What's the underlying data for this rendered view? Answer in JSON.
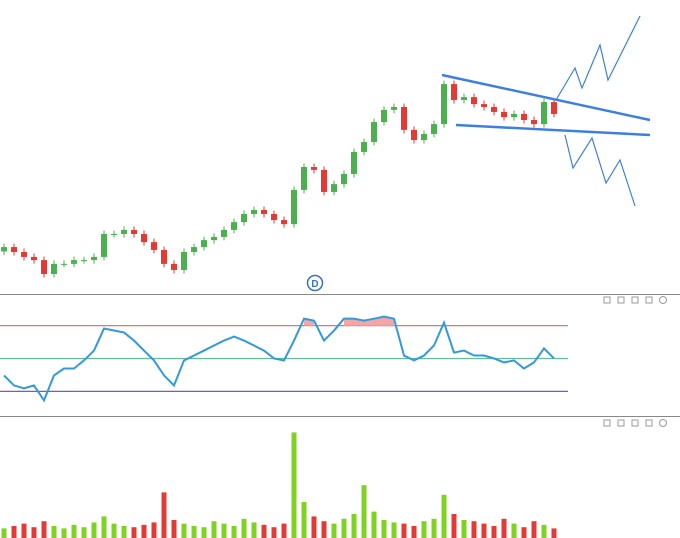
{
  "chart_data": [
    {
      "type": "candlestick",
      "annotation": "D",
      "up_color": "#4caf50",
      "down_color": "#e53935",
      "ylim": [
        0,
        100
      ],
      "open": [
        14,
        15.5,
        13.8,
        12.1,
        11,
        6.2,
        9.7,
        9.7,
        11,
        11,
        12.1,
        20,
        20,
        21.4,
        20,
        17.2,
        14.5,
        9.7,
        7.6,
        13.8,
        15.5,
        17.9,
        19,
        21.4,
        24.1,
        26.9,
        28.3,
        26.9,
        24.8,
        23.4,
        35.2,
        43.1,
        42.1,
        34.5,
        37.2,
        40.7,
        48.3,
        51.7,
        58.6,
        62.8,
        63.8,
        55.9,
        52.4,
        54.5,
        57.9,
        71.7,
        66.2,
        67.2,
        64.8,
        63.8,
        62.1,
        60.3,
        61.4,
        59.3,
        57.9,
        65.5
      ],
      "high": [
        16.7,
        16.7,
        15.0,
        13.3,
        12.2,
        10.9,
        10.9,
        12.2,
        12.2,
        13.3,
        21.2,
        21.2,
        22.6,
        22.6,
        21.2,
        18.4,
        15.7,
        10.9,
        15.0,
        16.7,
        19.1,
        20.2,
        22.6,
        25.3,
        28.1,
        29.5,
        29.5,
        28.1,
        26.0,
        36.4,
        44.3,
        44.3,
        43.3,
        38.4,
        41.9,
        49.5,
        52.9,
        59.8,
        64.0,
        65.0,
        65.0,
        57.1,
        55.7,
        59.1,
        72.9,
        72.9,
        68.4,
        68.4,
        66.0,
        65.0,
        63.3,
        62.6,
        62.6,
        60.5,
        66.7,
        66.7
      ],
      "low": [
        12.8,
        12.6,
        10.9,
        9.8,
        5.0,
        5.0,
        8.5,
        8.5,
        9.8,
        9.8,
        10.9,
        18.8,
        18.8,
        18.8,
        16.0,
        13.3,
        8.5,
        6.4,
        6.4,
        12.6,
        14.3,
        16.7,
        17.8,
        20.2,
        22.9,
        25.7,
        25.7,
        23.6,
        22.2,
        22.2,
        34.0,
        40.9,
        33.3,
        33.3,
        36.0,
        39.5,
        47.1,
        50.5,
        57.4,
        61.6,
        54.7,
        51.2,
        51.2,
        53.3,
        56.7,
        65.0,
        65.0,
        63.6,
        62.6,
        60.9,
        59.1,
        59.1,
        58.1,
        56.7,
        56.7,
        60.2
      ],
      "close": [
        15.5,
        13.8,
        12.1,
        11,
        6.2,
        9.7,
        9.7,
        11,
        11,
        12.1,
        20,
        20,
        21.4,
        20,
        17.2,
        14.5,
        9.7,
        7.6,
        13.8,
        15.5,
        17.9,
        19,
        21.4,
        24.1,
        26.9,
        28.3,
        26.9,
        24.8,
        23.4,
        35.2,
        43.1,
        42.1,
        34.5,
        37.2,
        40.7,
        48.3,
        51.7,
        58.6,
        62.8,
        63.8,
        55.9,
        52.4,
        54.5,
        57.9,
        71.7,
        66.2,
        67.2,
        64.8,
        63.8,
        62.1,
        60.3,
        61.4,
        59.3,
        57.9,
        65.5,
        61.4
      ]
    },
    {
      "type": "line",
      "color": "#3399dd",
      "ylim": [
        15,
        88
      ],
      "levels": [
        {
          "value": 70,
          "color": "#e57373"
        },
        {
          "value": 50,
          "color": "#66bb99"
        },
        {
          "value": 30,
          "color": "#7e57c2"
        }
      ],
      "shade_above": 70,
      "shade_color": "#f4a6a6",
      "values": [
        39.7,
        33.6,
        31.8,
        33.6,
        24.5,
        39.7,
        43.9,
        43.9,
        48.8,
        54.8,
        68.2,
        67,
        65.8,
        60.9,
        54.8,
        48.8,
        39.7,
        33.6,
        48.8,
        51.8,
        54.8,
        57.9,
        60.9,
        63.3,
        60.9,
        57.9,
        54.8,
        50,
        48.8,
        60.9,
        74.2,
        73,
        60.9,
        67,
        74.2,
        74.2,
        73,
        74.2,
        75.5,
        74.2,
        51.8,
        48.8,
        51.8,
        57.9,
        71.8,
        53.6,
        54.8,
        51.8,
        51.8,
        50,
        47.6,
        48.8,
        43.9,
        47.6,
        56.1,
        50
      ]
    },
    {
      "type": "bar",
      "up_color": "#7ed321",
      "down_color": "#e53935",
      "ylim": [
        0,
        100
      ],
      "values": [
        8,
        10,
        12,
        9,
        14,
        10,
        8,
        11,
        9,
        13,
        18,
        12,
        10,
        9,
        11,
        13,
        38,
        15,
        12,
        10,
        9,
        14,
        12,
        10,
        16,
        13,
        11,
        9,
        12,
        88,
        30,
        18,
        14,
        12,
        16,
        20,
        44,
        22,
        15,
        13,
        12,
        10,
        14,
        16,
        36,
        20,
        15,
        14,
        12,
        10,
        16,
        12,
        9,
        14,
        11,
        8
      ]
    }
  ]
}
